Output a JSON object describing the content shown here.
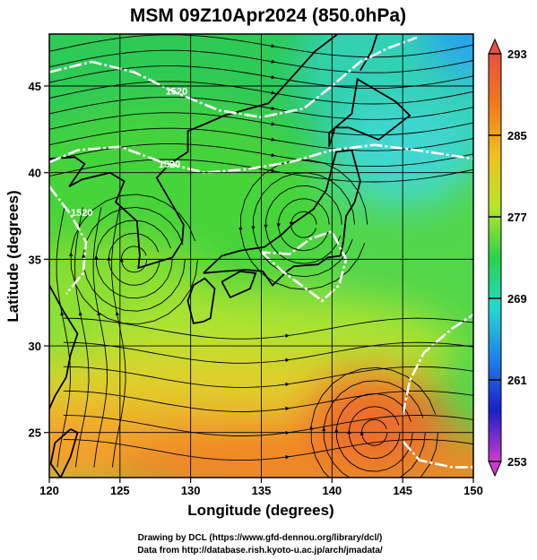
{
  "chart_data": {
    "type": "heatmap",
    "title": "MSM 09Z10Apr2024 (850.0hPa)",
    "xlabel": "Longitude (degrees)",
    "ylabel": "Latitude  (degrees)",
    "xlim": [
      120,
      150
    ],
    "ylim": [
      22.4,
      48
    ],
    "x_ticks": [
      120,
      125,
      130,
      135,
      140,
      145,
      150
    ],
    "y_ticks": [
      25,
      30,
      35,
      40,
      45
    ],
    "grid": true,
    "colorbar": {
      "min": 253,
      "max": 293,
      "ticks": [
        253,
        261,
        269,
        277,
        285,
        293
      ],
      "colors": [
        "#d03ad0",
        "#1a1fc8",
        "#1f7fe8",
        "#24d8d0",
        "#2bd24a",
        "#b8e52a",
        "#f0c020",
        "#f07a20",
        "#e85040"
      ]
    },
    "contour_labels": [
      "1520",
      "1520",
      "1520"
    ],
    "features": [
      {
        "kind": "cyclonic-circulation",
        "lon": 138,
        "lat": 37
      },
      {
        "kind": "anticyclonic-circulation",
        "lon": 126,
        "lat": 35
      },
      {
        "kind": "anticyclonic-circulation",
        "lon": 143,
        "lat": 25
      }
    ]
  },
  "footer": {
    "line1": "Drawing by DCL (https://www.gfd-dennou.org/library/dcl/)",
    "line2": "Data from http://database.rish.kyoto-u.ac.jp/arch/jmadata/"
  }
}
